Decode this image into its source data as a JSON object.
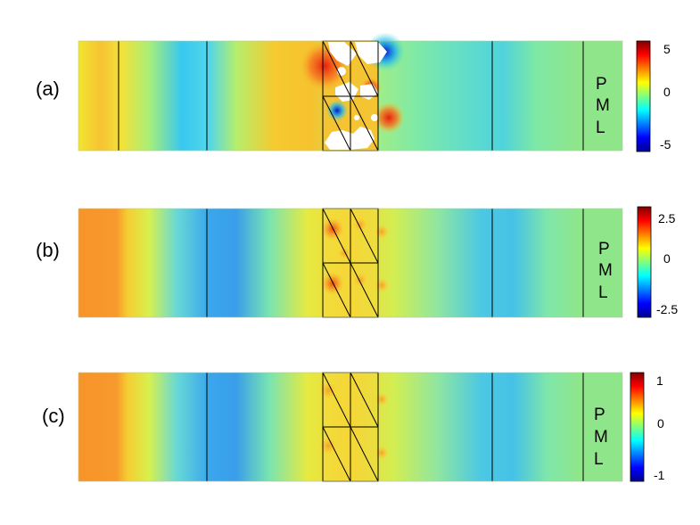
{
  "panels": [
    {
      "label": "(a)",
      "pml_letters": [
        "P",
        "M",
        "L"
      ],
      "colorbar": {
        "max_label": "5",
        "mid_label": "0",
        "min_label": "-5"
      }
    },
    {
      "label": "(b)",
      "pml_letters": [
        "P",
        "M",
        "L"
      ],
      "colorbar": {
        "max_label": "2.5",
        "mid_label": "0",
        "min_label": "-2.5"
      }
    },
    {
      "label": "(c)",
      "pml_letters": [
        "P",
        "M",
        "L"
      ],
      "colorbar": {
        "max_label": "1",
        "mid_label": "0",
        "min_label": "-1"
      }
    }
  ],
  "colors": {
    "jet": [
      "#00008f",
      "#0000ff",
      "#00ffff",
      "#7fff7f",
      "#ffff00",
      "#ff7f00",
      "#ff0000",
      "#800000"
    ],
    "pml_green": "#8fe68a",
    "lines": "#000000"
  }
}
